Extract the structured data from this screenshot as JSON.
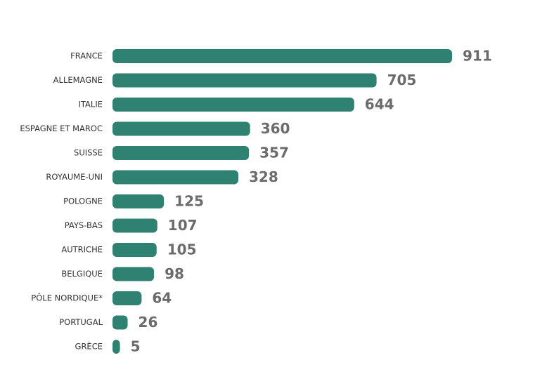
{
  "chart_data": {
    "type": "bar",
    "orientation": "horizontal",
    "categories": [
      "FRANCE",
      "ALLEMAGNE",
      "ITALIE",
      "ESPAGNE ET MAROC",
      "SUISSE",
      "ROYAUME-UNI",
      "POLOGNE",
      "PAYS-BAS",
      "AUTRICHE",
      "BELGIQUE",
      "PÔLE NORDIQUE*",
      "PORTUGAL",
      "GRÈCE"
    ],
    "values": [
      911,
      705,
      644,
      360,
      357,
      328,
      125,
      107,
      105,
      98,
      64,
      26,
      5
    ],
    "color": "#2f8172"
  }
}
